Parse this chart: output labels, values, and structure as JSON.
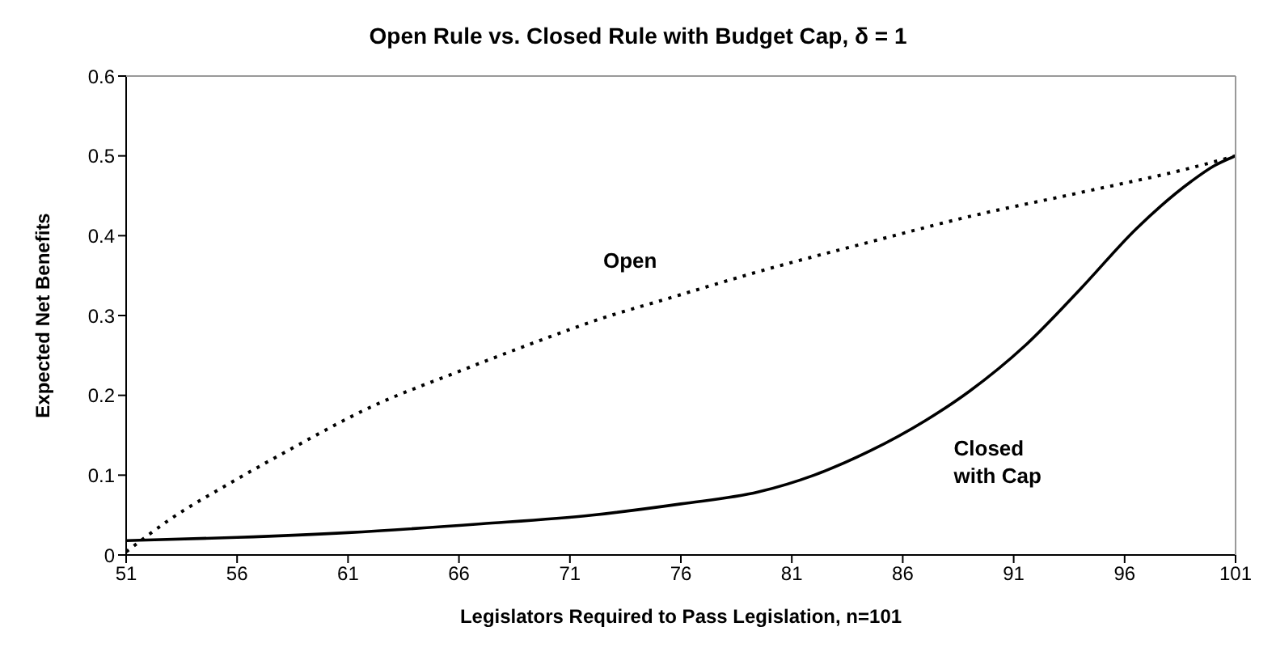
{
  "chart_data": {
    "type": "line",
    "title": "Open Rule vs. Closed Rule with Budget Cap,  δ = 1",
    "xlabel": "Legislators Required to Pass Legislation, n=101",
    "ylabel": "Expected Net Benefits",
    "xlim": [
      51,
      101
    ],
    "xticks": [
      51,
      56,
      61,
      66,
      71,
      76,
      81,
      86,
      91,
      96,
      101
    ],
    "ylim": [
      0,
      0.6
    ],
    "yticks": [
      0,
      0.1,
      0.2,
      0.3,
      0.4,
      0.5,
      0.6
    ],
    "marker": "none",
    "series": [
      {
        "name": "Open",
        "color": "#000000",
        "line_style": "dotted",
        "x": [
          51,
          53,
          56,
          58.5,
          62,
          66,
          69,
          72.5,
          75.5,
          79.5,
          84.5,
          89,
          94,
          99,
          101
        ],
        "values": [
          0.004,
          0.045,
          0.095,
          0.134,
          0.185,
          0.23,
          0.262,
          0.297,
          0.322,
          0.355,
          0.392,
          0.424,
          0.454,
          0.485,
          0.5
        ]
      },
      {
        "name": "Closed with Cap",
        "color": "#000000",
        "line_style": "solid",
        "x": [
          51,
          56,
          61,
          67,
          72,
          76,
          79.5,
          82,
          84.5,
          87,
          89,
          91.5,
          94,
          96.5,
          99,
          100,
          101
        ],
        "values": [
          0.018,
          0.022,
          0.028,
          0.039,
          0.05,
          0.064,
          0.079,
          0.1,
          0.13,
          0.168,
          0.205,
          0.262,
          0.333,
          0.408,
          0.468,
          0.487,
          0.5
        ]
      }
    ]
  }
}
